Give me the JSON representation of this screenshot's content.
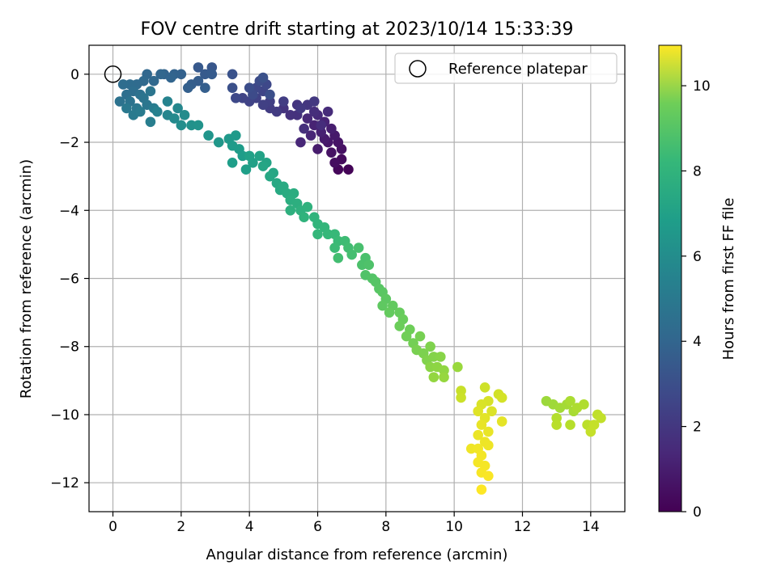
{
  "chart_data": {
    "type": "scatter",
    "title": "FOV centre drift starting at 2023/10/14 15:33:39",
    "xlabel": "Angular distance from reference (arcmin)",
    "ylabel": "Rotation from reference (arcmin)",
    "xlim": [
      -0.7,
      15.0
    ],
    "ylim": [
      -12.85,
      0.85
    ],
    "xticks": [
      0,
      2,
      4,
      6,
      8,
      10,
      12,
      14
    ],
    "yticks": [
      0,
      -2,
      -4,
      -6,
      -8,
      -10,
      -12
    ],
    "grid": true,
    "legend": {
      "position": "upper right",
      "entries": [
        "Reference platepar"
      ]
    },
    "reference_point": {
      "x": 0,
      "y": 0,
      "label": "Reference platepar"
    },
    "colorbar": {
      "label": "Hours from first FF file",
      "colormap": "viridis",
      "range": [
        0,
        10.95
      ],
      "ticks": [
        0,
        2,
        4,
        6,
        8,
        10
      ]
    },
    "series": [
      {
        "color_by": "hours",
        "points": [
          {
            "x": 6.9,
            "y": -2.8,
            "c": 0.1
          },
          {
            "x": 6.6,
            "y": -2.8,
            "c": 0.2
          },
          {
            "x": 6.7,
            "y": -2.5,
            "c": 0.3
          },
          {
            "x": 6.5,
            "y": -2.6,
            "c": 0.4
          },
          {
            "x": 6.7,
            "y": -2.2,
            "c": 0.5
          },
          {
            "x": 6.4,
            "y": -2.3,
            "c": 0.55
          },
          {
            "x": 6.6,
            "y": -2.0,
            "c": 0.6
          },
          {
            "x": 6.3,
            "y": -2.0,
            "c": 0.7
          },
          {
            "x": 6.5,
            "y": -1.8,
            "c": 0.75
          },
          {
            "x": 6.2,
            "y": -1.9,
            "c": 0.8
          },
          {
            "x": 6.0,
            "y": -2.2,
            "c": 0.85
          },
          {
            "x": 6.4,
            "y": -1.6,
            "c": 0.9
          },
          {
            "x": 6.1,
            "y": -1.7,
            "c": 1.0
          },
          {
            "x": 5.9,
            "y": -1.5,
            "c": 1.05
          },
          {
            "x": 6.2,
            "y": -1.4,
            "c": 1.1
          },
          {
            "x": 5.8,
            "y": -1.8,
            "c": 1.15
          },
          {
            "x": 5.5,
            "y": -2.0,
            "c": 1.2
          },
          {
            "x": 5.7,
            "y": -1.3,
            "c": 1.25
          },
          {
            "x": 6.0,
            "y": -1.2,
            "c": 1.3
          },
          {
            "x": 6.3,
            "y": -1.1,
            "c": 1.35
          },
          {
            "x": 6.1,
            "y": -1.5,
            "c": 1.4
          },
          {
            "x": 5.9,
            "y": -1.1,
            "c": 1.45
          },
          {
            "x": 5.6,
            "y": -1.6,
            "c": 1.5
          },
          {
            "x": 5.4,
            "y": -1.2,
            "c": 1.55
          },
          {
            "x": 5.2,
            "y": -1.2,
            "c": 1.6
          },
          {
            "x": 5.0,
            "y": -1.0,
            "c": 1.65
          },
          {
            "x": 5.4,
            "y": -0.9,
            "c": 1.7
          },
          {
            "x": 5.7,
            "y": -0.9,
            "c": 1.75
          },
          {
            "x": 5.9,
            "y": -0.8,
            "c": 1.8
          },
          {
            "x": 5.5,
            "y": -1.0,
            "c": 1.85
          },
          {
            "x": 4.8,
            "y": -1.1,
            "c": 1.9
          },
          {
            "x": 4.6,
            "y": -1.0,
            "c": 1.95
          },
          {
            "x": 5.0,
            "y": -0.8,
            "c": 2.0
          },
          {
            "x": 4.6,
            "y": -0.8,
            "c": 2.05
          },
          {
            "x": 4.4,
            "y": -0.9,
            "c": 2.1
          },
          {
            "x": 4.2,
            "y": -0.7,
            "c": 2.15
          },
          {
            "x": 4.0,
            "y": -0.8,
            "c": 2.2
          },
          {
            "x": 3.8,
            "y": -0.7,
            "c": 2.25
          },
          {
            "x": 4.4,
            "y": -0.5,
            "c": 2.3
          },
          {
            "x": 4.2,
            "y": -0.4,
            "c": 2.35
          },
          {
            "x": 4.5,
            "y": -0.3,
            "c": 2.4
          },
          {
            "x": 3.6,
            "y": -0.7,
            "c": 2.45
          },
          {
            "x": 4.1,
            "y": -0.6,
            "c": 2.5
          },
          {
            "x": 4.3,
            "y": -0.2,
            "c": 2.55
          },
          {
            "x": 4.0,
            "y": -0.4,
            "c": 2.6
          },
          {
            "x": 4.6,
            "y": -0.6,
            "c": 2.65
          },
          {
            "x": 3.5,
            "y": -0.4,
            "c": 2.7
          },
          {
            "x": 4.4,
            "y": -0.1,
            "c": 2.75
          },
          {
            "x": 3.5,
            "y": 0.0,
            "c": 2.8
          },
          {
            "x": 2.9,
            "y": 0.2,
            "c": 3.0
          },
          {
            "x": 2.5,
            "y": 0.2,
            "c": 3.05
          },
          {
            "x": 2.7,
            "y": 0.0,
            "c": 3.1
          },
          {
            "x": 2.9,
            "y": 0.0,
            "c": 3.15
          },
          {
            "x": 2.5,
            "y": -0.2,
            "c": 3.2
          },
          {
            "x": 2.3,
            "y": -0.3,
            "c": 3.25
          },
          {
            "x": 2.7,
            "y": -0.4,
            "c": 3.3
          },
          {
            "x": 2.2,
            "y": -0.4,
            "c": 3.35
          },
          {
            "x": 2.0,
            "y": 0.0,
            "c": 3.4
          },
          {
            "x": 1.8,
            "y": 0.0,
            "c": 3.45
          },
          {
            "x": 1.5,
            "y": 0.0,
            "c": 3.5
          },
          {
            "x": 1.7,
            "y": -0.1,
            "c": 3.55
          },
          {
            "x": 1.4,
            "y": 0.0,
            "c": 3.6
          },
          {
            "x": 1.0,
            "y": 0.0,
            "c": 3.65
          },
          {
            "x": 1.2,
            "y": -0.2,
            "c": 3.7
          },
          {
            "x": 0.9,
            "y": -0.2,
            "c": 3.75
          },
          {
            "x": 0.7,
            "y": -0.3,
            "c": 3.8
          },
          {
            "x": 0.5,
            "y": -0.3,
            "c": 3.85
          },
          {
            "x": 0.3,
            "y": -0.3,
            "c": 3.9
          },
          {
            "x": 0.6,
            "y": -0.5,
            "c": 3.95
          },
          {
            "x": 0.4,
            "y": -0.6,
            "c": 4.0
          },
          {
            "x": 0.8,
            "y": -0.6,
            "c": 4.05
          },
          {
            "x": 0.2,
            "y": -0.8,
            "c": 4.1
          },
          {
            "x": 0.5,
            "y": -0.8,
            "c": 4.15
          },
          {
            "x": 0.9,
            "y": -0.7,
            "c": 4.2
          },
          {
            "x": 1.1,
            "y": -0.5,
            "c": 4.25
          },
          {
            "x": 1.0,
            "y": -0.9,
            "c": 4.3
          },
          {
            "x": 0.7,
            "y": -1.0,
            "c": 4.35
          },
          {
            "x": 0.4,
            "y": -1.0,
            "c": 4.4
          },
          {
            "x": 0.6,
            "y": -1.2,
            "c": 4.5
          },
          {
            "x": 0.8,
            "y": -1.1,
            "c": 4.55
          },
          {
            "x": 1.2,
            "y": -1.0,
            "c": 4.6
          },
          {
            "x": 1.1,
            "y": -1.4,
            "c": 4.7
          },
          {
            "x": 1.3,
            "y": -1.1,
            "c": 4.8
          },
          {
            "x": 1.6,
            "y": -0.8,
            "c": 4.9
          },
          {
            "x": 1.6,
            "y": -1.2,
            "c": 5.0
          },
          {
            "x": 1.9,
            "y": -1.0,
            "c": 5.1
          },
          {
            "x": 1.8,
            "y": -1.3,
            "c": 5.2
          },
          {
            "x": 2.1,
            "y": -1.2,
            "c": 5.3
          },
          {
            "x": 2.0,
            "y": -1.5,
            "c": 5.4
          },
          {
            "x": 2.3,
            "y": -1.5,
            "c": 5.5
          },
          {
            "x": 2.5,
            "y": -1.5,
            "c": 5.6
          },
          {
            "x": 2.8,
            "y": -1.8,
            "c": 5.7
          },
          {
            "x": 3.1,
            "y": -2.0,
            "c": 5.8
          },
          {
            "x": 3.4,
            "y": -1.9,
            "c": 5.85
          },
          {
            "x": 3.6,
            "y": -1.8,
            "c": 5.9
          },
          {
            "x": 3.5,
            "y": -2.1,
            "c": 5.95
          },
          {
            "x": 3.7,
            "y": -2.2,
            "c": 6.0
          },
          {
            "x": 3.8,
            "y": -2.4,
            "c": 6.05
          },
          {
            "x": 3.5,
            "y": -2.6,
            "c": 6.1
          },
          {
            "x": 3.9,
            "y": -2.8,
            "c": 6.15
          },
          {
            "x": 4.1,
            "y": -2.6,
            "c": 6.2
          },
          {
            "x": 4.0,
            "y": -2.4,
            "c": 6.25
          },
          {
            "x": 4.3,
            "y": -2.4,
            "c": 6.3
          },
          {
            "x": 4.5,
            "y": -2.6,
            "c": 6.35
          },
          {
            "x": 4.4,
            "y": -2.7,
            "c": 6.4
          },
          {
            "x": 4.7,
            "y": -2.9,
            "c": 6.45
          },
          {
            "x": 4.6,
            "y": -3.0,
            "c": 6.5
          },
          {
            "x": 4.8,
            "y": -3.2,
            "c": 6.55
          },
          {
            "x": 4.9,
            "y": -3.4,
            "c": 6.6
          },
          {
            "x": 5.0,
            "y": -3.3,
            "c": 6.65
          },
          {
            "x": 5.1,
            "y": -3.5,
            "c": 6.7
          },
          {
            "x": 5.3,
            "y": -3.5,
            "c": 6.75
          },
          {
            "x": 5.2,
            "y": -3.7,
            "c": 6.8
          },
          {
            "x": 5.4,
            "y": -3.8,
            "c": 6.85
          },
          {
            "x": 5.2,
            "y": -4.0,
            "c": 6.9
          },
          {
            "x": 5.5,
            "y": -4.0,
            "c": 6.95
          },
          {
            "x": 5.7,
            "y": -3.9,
            "c": 7.0
          },
          {
            "x": 5.6,
            "y": -4.2,
            "c": 7.05
          },
          {
            "x": 5.9,
            "y": -4.2,
            "c": 7.1
          },
          {
            "x": 6.0,
            "y": -4.4,
            "c": 7.15
          },
          {
            "x": 6.2,
            "y": -4.5,
            "c": 7.2
          },
          {
            "x": 6.0,
            "y": -4.7,
            "c": 7.25
          },
          {
            "x": 6.3,
            "y": -4.7,
            "c": 7.3
          },
          {
            "x": 6.5,
            "y": -4.7,
            "c": 7.35
          },
          {
            "x": 6.6,
            "y": -4.9,
            "c": 7.4
          },
          {
            "x": 6.5,
            "y": -5.1,
            "c": 7.45
          },
          {
            "x": 6.8,
            "y": -4.9,
            "c": 7.5
          },
          {
            "x": 6.9,
            "y": -5.1,
            "c": 7.55
          },
          {
            "x": 6.6,
            "y": -5.4,
            "c": 7.6
          },
          {
            "x": 7.0,
            "y": -5.3,
            "c": 7.65
          },
          {
            "x": 7.2,
            "y": -5.1,
            "c": 7.7
          },
          {
            "x": 7.4,
            "y": -5.4,
            "c": 7.75
          },
          {
            "x": 7.3,
            "y": -5.6,
            "c": 7.8
          },
          {
            "x": 7.5,
            "y": -5.6,
            "c": 7.85
          },
          {
            "x": 7.4,
            "y": -5.9,
            "c": 7.9
          },
          {
            "x": 7.6,
            "y": -6.0,
            "c": 7.95
          },
          {
            "x": 7.7,
            "y": -6.1,
            "c": 8.0
          },
          {
            "x": 7.8,
            "y": -6.3,
            "c": 8.05
          },
          {
            "x": 7.9,
            "y": -6.4,
            "c": 8.1
          },
          {
            "x": 8.0,
            "y": -6.6,
            "c": 8.15
          },
          {
            "x": 7.9,
            "y": -6.8,
            "c": 8.2
          },
          {
            "x": 8.2,
            "y": -6.8,
            "c": 8.25
          },
          {
            "x": 8.1,
            "y": -7.0,
            "c": 8.3
          },
          {
            "x": 8.4,
            "y": -7.0,
            "c": 8.35
          },
          {
            "x": 8.5,
            "y": -7.2,
            "c": 8.4
          },
          {
            "x": 8.4,
            "y": -7.4,
            "c": 8.45
          },
          {
            "x": 8.7,
            "y": -7.5,
            "c": 8.5
          },
          {
            "x": 8.6,
            "y": -7.7,
            "c": 8.55
          },
          {
            "x": 8.8,
            "y": -7.9,
            "c": 8.6
          },
          {
            "x": 9.0,
            "y": -7.7,
            "c": 8.65
          },
          {
            "x": 8.9,
            "y": -8.1,
            "c": 8.7
          },
          {
            "x": 9.1,
            "y": -8.2,
            "c": 8.75
          },
          {
            "x": 9.3,
            "y": -8.0,
            "c": 8.8
          },
          {
            "x": 9.2,
            "y": -8.4,
            "c": 8.85
          },
          {
            "x": 9.4,
            "y": -8.3,
            "c": 8.9
          },
          {
            "x": 9.6,
            "y": -8.3,
            "c": 8.95
          },
          {
            "x": 9.3,
            "y": -8.6,
            "c": 9.0
          },
          {
            "x": 9.5,
            "y": -8.6,
            "c": 9.05
          },
          {
            "x": 9.7,
            "y": -8.7,
            "c": 9.1
          },
          {
            "x": 9.4,
            "y": -8.9,
            "c": 9.15
          },
          {
            "x": 9.7,
            "y": -8.9,
            "c": 9.2
          },
          {
            "x": 10.1,
            "y": -8.6,
            "c": 9.25
          },
          {
            "x": 12.7,
            "y": -9.6,
            "c": 9.3
          },
          {
            "x": 12.9,
            "y": -9.7,
            "c": 9.35
          },
          {
            "x": 13.1,
            "y": -9.8,
            "c": 9.4
          },
          {
            "x": 13.3,
            "y": -9.7,
            "c": 9.45
          },
          {
            "x": 13.5,
            "y": -9.9,
            "c": 9.5
          },
          {
            "x": 13.4,
            "y": -9.6,
            "c": 9.55
          },
          {
            "x": 13.6,
            "y": -9.8,
            "c": 9.6
          },
          {
            "x": 13.8,
            "y": -9.7,
            "c": 9.65
          },
          {
            "x": 13.0,
            "y": -10.1,
            "c": 9.7
          },
          {
            "x": 13.4,
            "y": -10.3,
            "c": 9.75
          },
          {
            "x": 13.0,
            "y": -10.3,
            "c": 9.8
          },
          {
            "x": 13.9,
            "y": -10.3,
            "c": 9.85
          },
          {
            "x": 14.2,
            "y": -10.0,
            "c": 9.9
          },
          {
            "x": 14.3,
            "y": -10.1,
            "c": 9.95
          },
          {
            "x": 14.0,
            "y": -10.5,
            "c": 10.0
          },
          {
            "x": 14.1,
            "y": -10.3,
            "c": 10.0
          },
          {
            "x": 10.2,
            "y": -9.3,
            "c": 10.05
          },
          {
            "x": 10.2,
            "y": -9.5,
            "c": 10.1
          },
          {
            "x": 10.9,
            "y": -9.2,
            "c": 10.15
          },
          {
            "x": 11.3,
            "y": -9.4,
            "c": 10.2
          },
          {
            "x": 11.4,
            "y": -9.5,
            "c": 10.25
          },
          {
            "x": 11.0,
            "y": -9.6,
            "c": 10.3
          },
          {
            "x": 10.8,
            "y": -9.7,
            "c": 10.35
          },
          {
            "x": 11.1,
            "y": -9.9,
            "c": 10.4
          },
          {
            "x": 10.7,
            "y": -9.9,
            "c": 10.45
          },
          {
            "x": 10.9,
            "y": -10.1,
            "c": 10.5
          },
          {
            "x": 11.4,
            "y": -10.2,
            "c": 10.55
          },
          {
            "x": 10.8,
            "y": -10.3,
            "c": 10.6
          },
          {
            "x": 11.0,
            "y": -10.5,
            "c": 10.62
          },
          {
            "x": 10.7,
            "y": -10.6,
            "c": 10.65
          },
          {
            "x": 10.9,
            "y": -10.8,
            "c": 10.68
          },
          {
            "x": 11.0,
            "y": -10.9,
            "c": 10.7
          },
          {
            "x": 10.5,
            "y": -11.0,
            "c": 10.72
          },
          {
            "x": 10.7,
            "y": -11.0,
            "c": 10.75
          },
          {
            "x": 10.8,
            "y": -11.2,
            "c": 10.78
          },
          {
            "x": 10.7,
            "y": -11.4,
            "c": 10.8
          },
          {
            "x": 10.9,
            "y": -11.5,
            "c": 10.82
          },
          {
            "x": 10.8,
            "y": -11.7,
            "c": 10.85
          },
          {
            "x": 11.0,
            "y": -11.8,
            "c": 10.88
          },
          {
            "x": 10.8,
            "y": -12.2,
            "c": 10.95
          }
        ]
      }
    ]
  }
}
